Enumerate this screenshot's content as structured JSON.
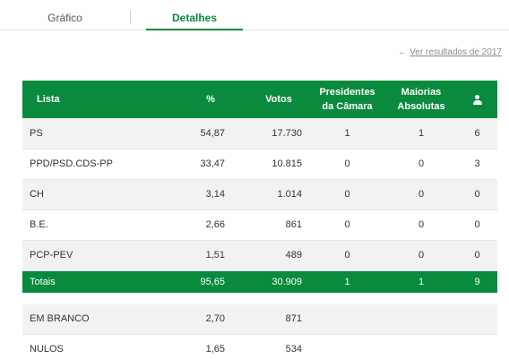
{
  "tabs": [
    {
      "label": "Gráfico",
      "active": false
    },
    {
      "label": "Detalhes",
      "active": true
    }
  ],
  "previous_results_link": "Ver resultados de 2017",
  "icons": {
    "back": "arrow-left-icon",
    "seats": "user-icon"
  },
  "colors": {
    "accent": "#0a8a3c"
  },
  "table": {
    "headers": {
      "lista": "Lista",
      "pct": "%",
      "votos": "Votos",
      "presidentes": [
        "Presidentes",
        "da Câmara"
      ],
      "maiorias": [
        "Maiorias",
        "Absolutas"
      ]
    },
    "rows": [
      {
        "lista": "PS",
        "pct": "54,87",
        "votos": "17.730",
        "presidentes": "1",
        "maiorias": "1",
        "mandatos": "6"
      },
      {
        "lista": "PPD/PSD.CDS-PP",
        "pct": "33,47",
        "votos": "10.815",
        "presidentes": "0",
        "maiorias": "0",
        "mandatos": "3"
      },
      {
        "lista": "CH",
        "pct": "3,14",
        "votos": "1.014",
        "presidentes": "0",
        "maiorias": "0",
        "mandatos": "0"
      },
      {
        "lista": "B.E.",
        "pct": "2,66",
        "votos": "861",
        "presidentes": "0",
        "maiorias": "0",
        "mandatos": "0"
      },
      {
        "lista": "PCP-PEV",
        "pct": "1,51",
        "votos": "489",
        "presidentes": "0",
        "maiorias": "0",
        "mandatos": "0"
      }
    ],
    "totals": {
      "lista": "Totais",
      "pct": "95,65",
      "votos": "30.909",
      "presidentes": "1",
      "maiorias": "1",
      "mandatos": "9"
    },
    "extras": [
      {
        "lista": "EM BRANCO",
        "pct": "2,70",
        "votos": "871"
      },
      {
        "lista": "NULOS",
        "pct": "1,65",
        "votos": "534"
      }
    ]
  }
}
